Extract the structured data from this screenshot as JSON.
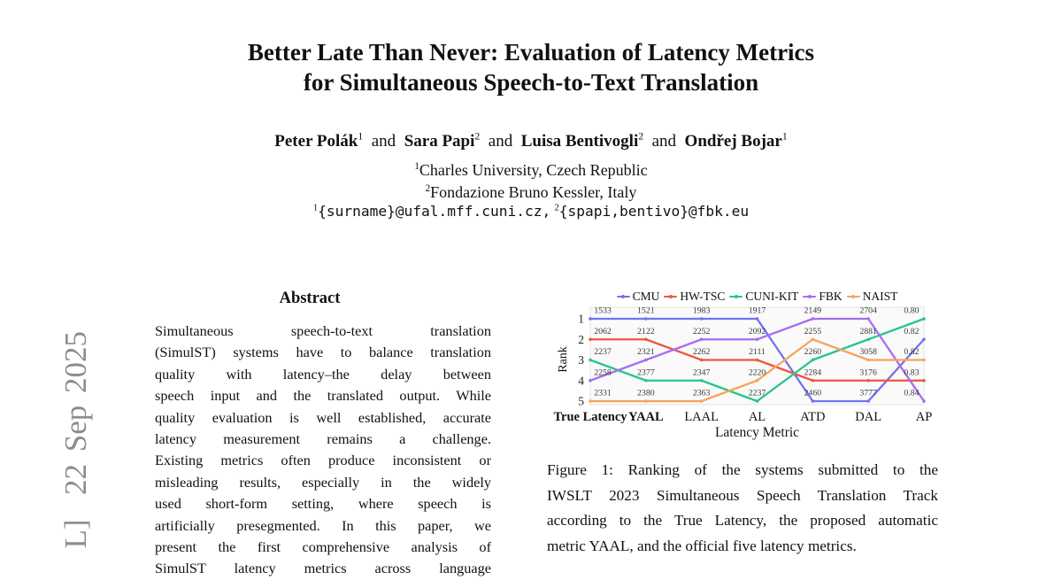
{
  "watermark": {
    "text": "L]  22 Sep 2025",
    "color": "#8d8d8d"
  },
  "title": {
    "line1": "Better Late Than Never: Evaluation of Latency Metrics",
    "line2": "for Simultaneous Speech-to-Text Translation"
  },
  "authors": {
    "separator": "and",
    "items": [
      {
        "name": "Peter Polák",
        "sup": "1"
      },
      {
        "name": "Sara Papi",
        "sup": "2"
      },
      {
        "name": "Luisa Bentivogli",
        "sup": "2"
      },
      {
        "name": "Ondřej Bojar",
        "sup": "1"
      }
    ],
    "affiliations": [
      {
        "sup": "1",
        "text": "Charles University, Czech Republic"
      },
      {
        "sup": "2",
        "text": "Fondazione Bruno Kessler, Italy"
      }
    ],
    "emails": [
      {
        "sup": "1",
        "text": "{surname}@ufal.mff.cuni.cz,"
      },
      {
        "sup": "2",
        "text": "{spapi,bentivo}@fbk.eu"
      }
    ]
  },
  "abstract": {
    "heading": "Abstract",
    "lines": [
      "Simultaneous speech-to-text translation",
      "(SimulST) systems have to balance translation",
      "quality with latency–the delay between",
      "speech input and the translated output. While",
      "quality evaluation is well established, accurate",
      "latency measurement remains a challenge.",
      "Existing metrics often produce inconsistent or",
      "misleading results, especially in the widely",
      "used short-form setting, where speech is",
      "artificially presegmented. In this paper, we",
      "present the first comprehensive analysis of",
      "SimulST latency metrics across language"
    ]
  },
  "figure": {
    "caption_lines": [
      "Figure 1: Ranking of the systems submitted to the",
      "IWSLT 2023 Simultaneous Speech Translation Track",
      "according to the True Latency, the proposed automatic",
      "metric YAAL, and the official five latency metrics."
    ]
  },
  "chart_data": {
    "type": "line",
    "subtype": "bump-ranking",
    "title": "",
    "xlabel": "Latency Metric",
    "ylabel": "Rank",
    "yticks": [
      1,
      2,
      3,
      4,
      5
    ],
    "legend_position": "top",
    "grid": false,
    "categories": [
      {
        "label": "True Latency",
        "bold": true
      },
      {
        "label": "YAAL",
        "bold": true
      },
      {
        "label": "LAAL",
        "bold": false
      },
      {
        "label": "AL",
        "bold": false
      },
      {
        "label": "ATD",
        "bold": false
      },
      {
        "label": "DAL",
        "bold": false
      },
      {
        "label": "AP",
        "bold": false
      }
    ],
    "series": [
      {
        "name": "CMU",
        "color": "#7173f0",
        "ranks": [
          1,
          1,
          1,
          1,
          5,
          5,
          2
        ],
        "values": [
          "1533",
          "1521",
          "1983",
          "1917",
          "2460",
          "3777",
          "0.82"
        ]
      },
      {
        "name": "HW-TSC",
        "color": "#f0553d",
        "ranks": [
          2,
          2,
          3,
          3,
          4,
          4,
          4
        ],
        "values": [
          "2062",
          "2122",
          "2262",
          "2111",
          "2284",
          "3176",
          "0.83"
        ]
      },
      {
        "name": "CUNI-KIT",
        "color": "#27c687",
        "ranks": [
          3,
          4,
          4,
          5,
          3,
          2,
          1
        ],
        "values": [
          "2237",
          "2377",
          "2347",
          "2237",
          "2260",
          "2881",
          "0.80"
        ]
      },
      {
        "name": "FBK",
        "color": "#a76cf2",
        "ranks": [
          4,
          3,
          2,
          2,
          1,
          1,
          5
        ],
        "values": [
          "2258",
          "2321",
          "2252",
          "2092",
          "2149",
          "2704",
          "0.84"
        ]
      },
      {
        "name": "NAIST",
        "color": "#f8a35c",
        "ranks": [
          5,
          5,
          5,
          4,
          2,
          3,
          3
        ],
        "values": [
          "2331",
          "2380",
          "2363",
          "2220",
          "2255",
          "3058",
          "0.82"
        ]
      }
    ],
    "plot_style": {
      "box_fill": "#fafafa",
      "box_stroke": "#e3e3e3",
      "label_color": "#3a3a3a"
    }
  }
}
